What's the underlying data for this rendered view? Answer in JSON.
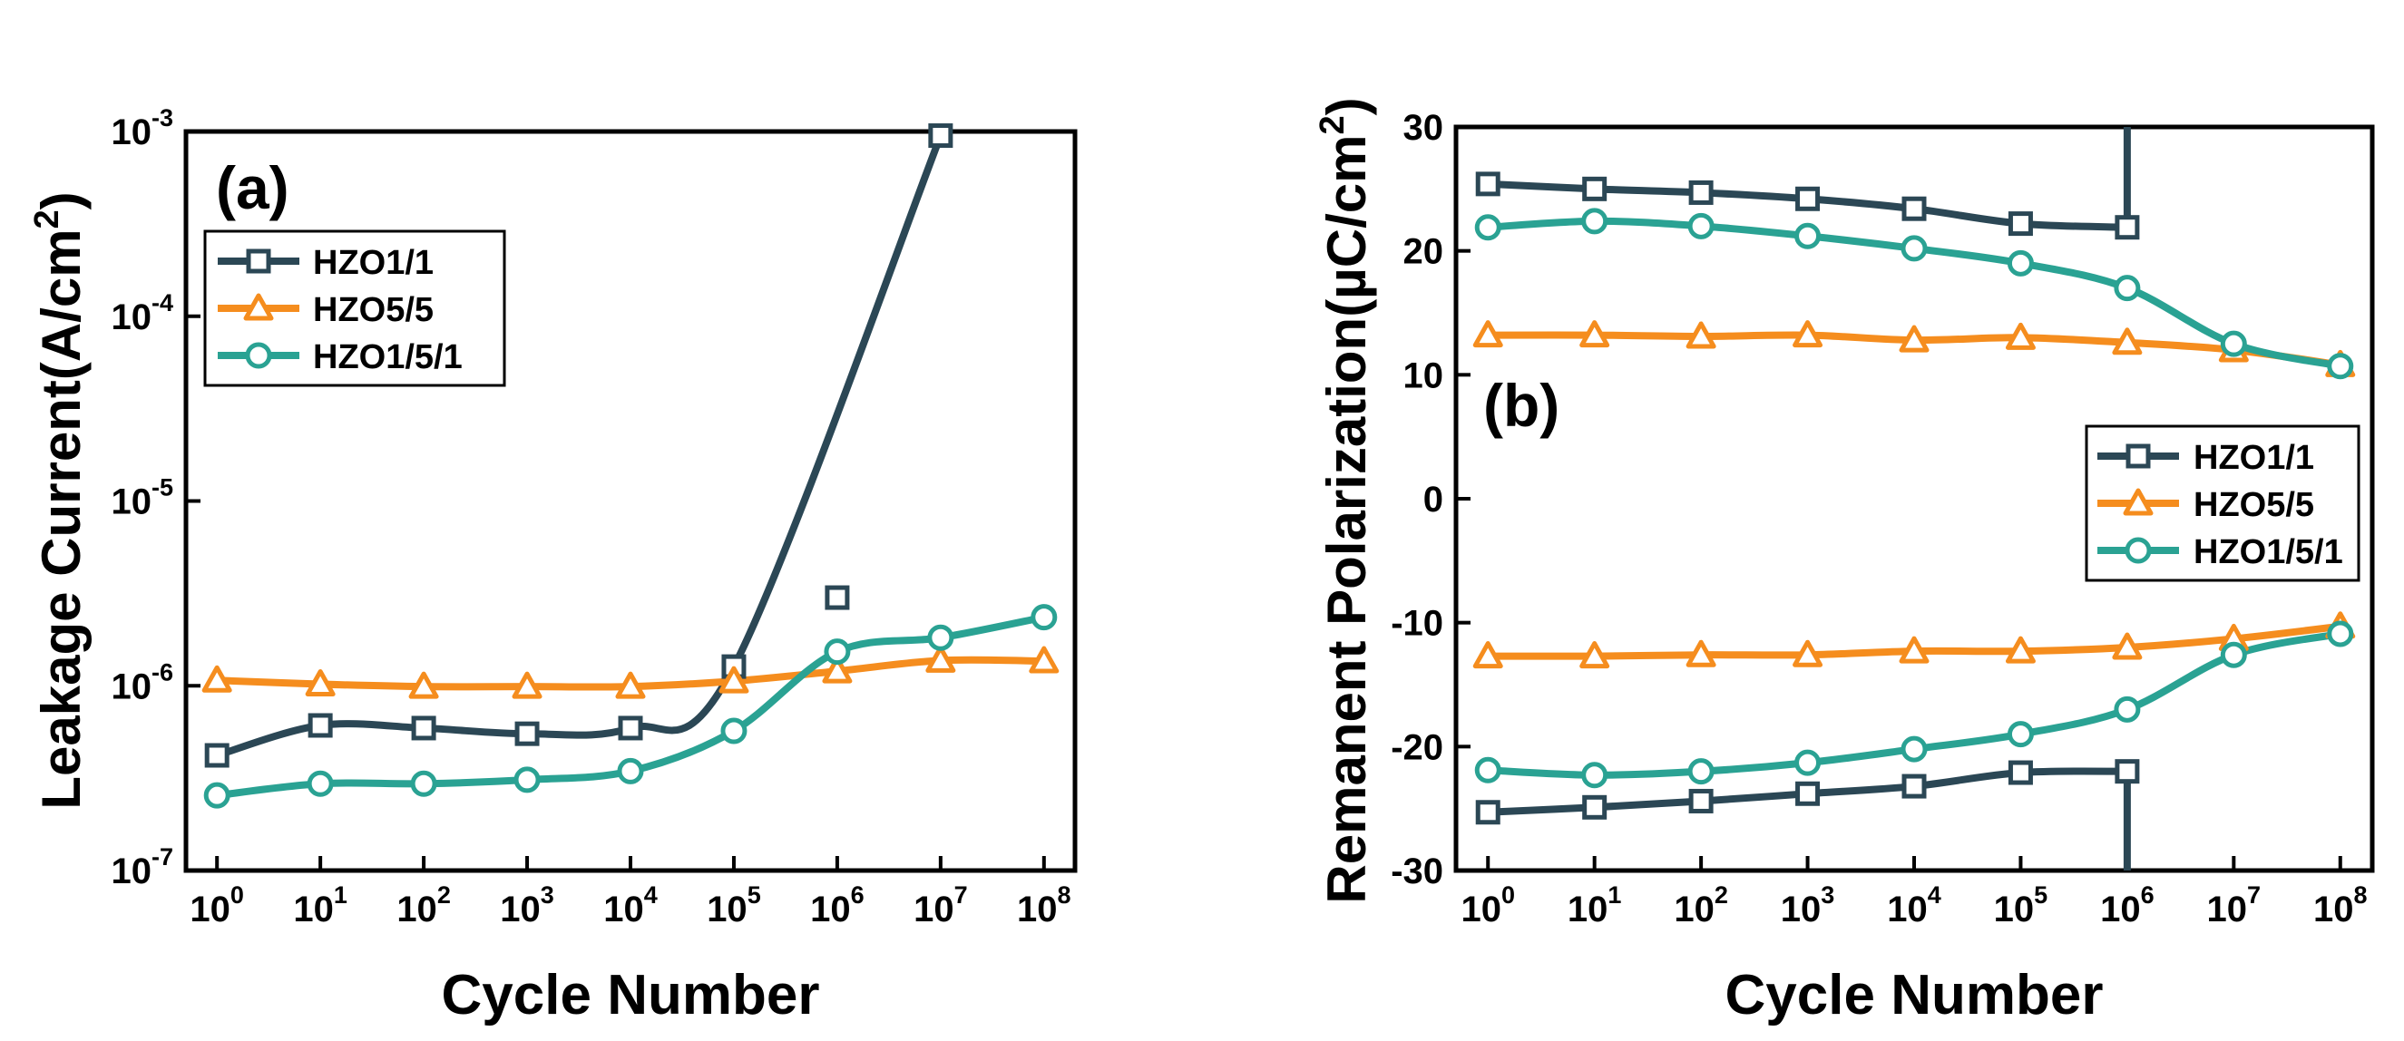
{
  "colors": {
    "hzo11": "#2b4755",
    "hzo55": "#f58d1e",
    "hzo151": "#2aa293",
    "axis": "#000000",
    "background": "#ffffff"
  },
  "chart_data": [
    {
      "panel_label": "(a)",
      "type": "line",
      "yscale": "log",
      "xlabel": "Cycle Number",
      "ylabel_main": "Leakage Current(A/cm",
      "ylabel_sup": "2",
      "ylabel_tail": ")",
      "xlim_exp": [
        -0.3,
        8.3
      ],
      "ylim_exp": [
        -7,
        -3
      ],
      "x_ticks": [
        {
          "base": "10",
          "exp": "0"
        },
        {
          "base": "10",
          "exp": "1"
        },
        {
          "base": "10",
          "exp": "2"
        },
        {
          "base": "10",
          "exp": "3"
        },
        {
          "base": "10",
          "exp": "4"
        },
        {
          "base": "10",
          "exp": "5"
        },
        {
          "base": "10",
          "exp": "6"
        },
        {
          "base": "10",
          "exp": "7"
        },
        {
          "base": "10",
          "exp": "8"
        }
      ],
      "y_ticks": [
        {
          "base": "10",
          "exp": "-7"
        },
        {
          "base": "10",
          "exp": "-6"
        },
        {
          "base": "10",
          "exp": "-5"
        },
        {
          "base": "10",
          "exp": "-4"
        },
        {
          "base": "10",
          "exp": "-3"
        }
      ],
      "legend": {
        "position": "top-left"
      },
      "series": [
        {
          "name": "HZO1/1",
          "marker": "square",
          "color_key": "hzo11",
          "x_exp": [
            0,
            1,
            2,
            3,
            4,
            5,
            6,
            7
          ],
          "values": [
            4.2e-07,
            6.1e-07,
            5.9e-07,
            5.5e-07,
            5.9e-07,
            1.27e-06,
            3e-06,
            0.00095
          ],
          "curve_extends_to_exp": 7
        },
        {
          "name": "HZO5/5",
          "marker": "triangle",
          "color_key": "hzo55",
          "x_exp": [
            0,
            1,
            2,
            3,
            4,
            5,
            6,
            7,
            8
          ],
          "values": [
            1.07e-06,
            1.02e-06,
            9.9e-07,
            9.9e-07,
            9.9e-07,
            1.06e-06,
            1.2e-06,
            1.37e-06,
            1.36e-06
          ]
        },
        {
          "name": "HZO1/5/1",
          "marker": "circle",
          "color_key": "hzo151",
          "x_exp": [
            0,
            1,
            2,
            3,
            4,
            5,
            6,
            7,
            8
          ],
          "values": [
            2.55e-07,
            2.95e-07,
            2.95e-07,
            3.1e-07,
            3.45e-07,
            5.7e-07,
            1.53e-06,
            1.82e-06,
            2.35e-06
          ]
        }
      ]
    },
    {
      "panel_label": "(b)",
      "type": "line",
      "yscale": "linear",
      "xlabel": "Cycle Number",
      "ylabel_main": "Remanent Polarization(µC/cm",
      "ylabel_sup": "2",
      "ylabel_tail": ")",
      "xlim_exp": [
        -0.3,
        8.3
      ],
      "ylim": [
        -30,
        30
      ],
      "x_ticks": [
        {
          "base": "10",
          "exp": "0"
        },
        {
          "base": "10",
          "exp": "1"
        },
        {
          "base": "10",
          "exp": "2"
        },
        {
          "base": "10",
          "exp": "3"
        },
        {
          "base": "10",
          "exp": "4"
        },
        {
          "base": "10",
          "exp": "5"
        },
        {
          "base": "10",
          "exp": "6"
        },
        {
          "base": "10",
          "exp": "7"
        },
        {
          "base": "10",
          "exp": "8"
        }
      ],
      "y_ticks": [
        "-30",
        "-20",
        "-10",
        "0",
        "10",
        "20",
        "30"
      ],
      "legend": {
        "position": "right"
      },
      "series": [
        {
          "name": "HZO1/1",
          "marker": "square",
          "color_key": "hzo11",
          "x_exp": [
            0,
            1,
            2,
            3,
            4,
            5,
            6
          ],
          "positive": [
            25.4,
            25.0,
            24.7,
            24.2,
            23.4,
            22.2,
            21.9
          ],
          "negative": [
            -25.3,
            -24.9,
            -24.4,
            -23.8,
            -23.2,
            -22.1,
            -22.0
          ],
          "breakdown_at_exp": 6
        },
        {
          "name": "HZO5/5",
          "marker": "triangle",
          "color_key": "hzo55",
          "x_exp": [
            0,
            1,
            2,
            3,
            4,
            5,
            6,
            7,
            8
          ],
          "positive": [
            13.2,
            13.2,
            13.1,
            13.2,
            12.8,
            13.0,
            12.6,
            12.0,
            10.8
          ],
          "negative": [
            -12.7,
            -12.7,
            -12.6,
            -12.6,
            -12.3,
            -12.3,
            -12.0,
            -11.3,
            -10.3
          ]
        },
        {
          "name": "HZO1/5/1",
          "marker": "circle",
          "color_key": "hzo151",
          "x_exp": [
            0,
            1,
            2,
            3,
            4,
            5,
            6,
            7,
            8
          ],
          "positive": [
            21.9,
            22.4,
            22.0,
            21.2,
            20.2,
            19.0,
            17.0,
            12.5,
            10.7
          ],
          "negative": [
            -21.9,
            -22.3,
            -22.0,
            -21.3,
            -20.2,
            -19.0,
            -17.0,
            -12.6,
            -10.9
          ]
        }
      ]
    }
  ]
}
